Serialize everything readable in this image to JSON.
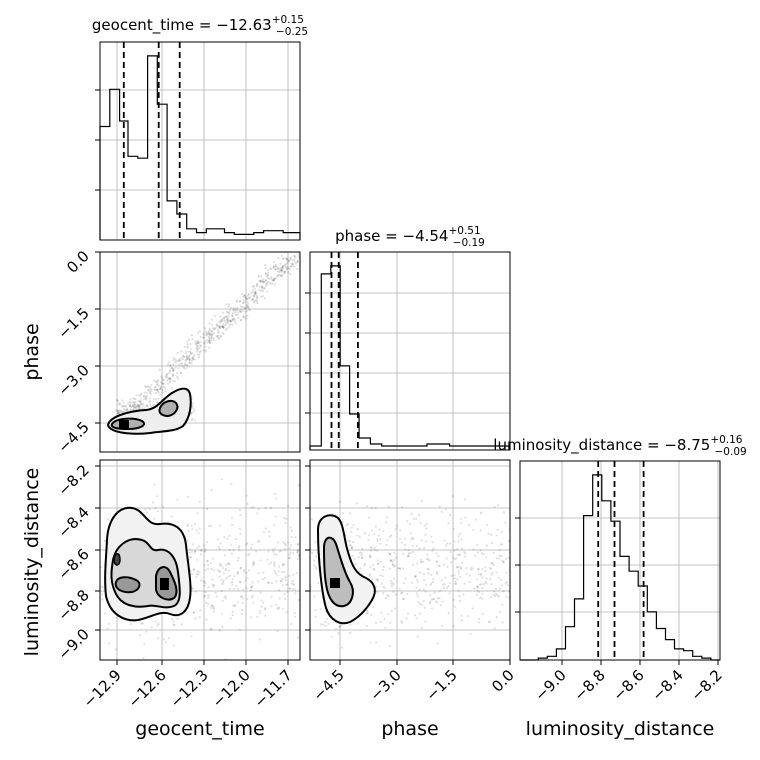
{
  "chart_data": {
    "type": "corner",
    "parameters": [
      "geocent_time",
      "phase",
      "luminosity_distance"
    ],
    "ranges": {
      "geocent_time": [
        -13.05,
        -11.62
      ],
      "phase": [
        -5.3,
        0.0
      ],
      "luminosity_distance": [
        -9.27,
        -8.17
      ]
    },
    "ticks": {
      "geocent_time": [
        -12.9,
        -12.6,
        -12.3,
        -12.0,
        -11.7
      ],
      "phase": [
        -4.5,
        -3.0,
        -1.5,
        0.0
      ],
      "luminosity_distance": [
        -9.0,
        -8.8,
        -8.6,
        -8.4,
        -8.2
      ]
    },
    "tick_labels": {
      "geocent_time": [
        "−12.9",
        "−12.6",
        "−12.3",
        "−12.0",
        "−11.7"
      ],
      "phase": [
        "−4.5",
        "−3.0",
        "−1.5",
        "0.0"
      ],
      "luminosity_distance": [
        "−9.0",
        "−8.8",
        "−8.6",
        "−8.4",
        "−8.2"
      ]
    },
    "titles": [
      {
        "param": "geocent_time",
        "prefix": "geocent_time = −12.63",
        "sup": "+0.15",
        "sub": "−0.25"
      },
      {
        "param": "phase",
        "prefix": "phase = −4.54",
        "sup": "+0.51",
        "sub": "−0.19"
      },
      {
        "param": "luminosity_distance",
        "prefix": "luminosity_distance = −8.75",
        "sup": "+0.16",
        "sub": "−0.09"
      }
    ],
    "marginals": {
      "geocent_time": {
        "edges": [
          -13.05,
          -12.98,
          -12.91,
          -12.85,
          -12.78,
          -12.71,
          -12.64,
          -12.57,
          -12.5,
          -12.43,
          -12.36,
          -12.29,
          -12.23,
          -12.16,
          -12.09,
          -12.02,
          -11.95,
          -11.88,
          -11.81,
          -11.74,
          -11.67,
          -11.62
        ],
        "counts": [
          0.61,
          0.81,
          0.64,
          0.45,
          0.44,
          0.99,
          0.73,
          0.21,
          0.14,
          0.06,
          0.04,
          0.06,
          0.06,
          0.04,
          0.03,
          0.03,
          0.04,
          0.05,
          0.05,
          0.04,
          0.04
        ],
        "quantiles": [
          -12.88,
          -12.63,
          -12.48
        ]
      },
      "phase": {
        "edges": [
          -5.3,
          -5.0,
          -4.75,
          -4.5,
          -4.25,
          -4.0,
          -3.7,
          -3.4,
          -3.1,
          -2.8,
          -2.5,
          -2.2,
          -1.9,
          -1.6,
          -1.3,
          -1.0,
          -0.7,
          -0.4,
          0.0
        ],
        "counts": [
          0.02,
          0.88,
          0.92,
          0.42,
          0.18,
          0.06,
          0.03,
          0.02,
          0.02,
          0.02,
          0.02,
          0.03,
          0.03,
          0.02,
          0.02,
          0.02,
          0.02,
          0.02
        ],
        "quantiles": [
          -4.73,
          -4.54,
          -4.03
        ]
      },
      "luminosity_distance": {
        "edges": [
          -9.27,
          -9.22,
          -9.17,
          -9.12,
          -9.07,
          -9.02,
          -8.97,
          -8.92,
          -8.87,
          -8.82,
          -8.77,
          -8.72,
          -8.67,
          -8.62,
          -8.57,
          -8.52,
          -8.47,
          -8.42,
          -8.37,
          -8.32,
          -8.27,
          -8.22,
          -8.17
        ],
        "counts": [
          0.0,
          0.0,
          0.01,
          0.02,
          0.06,
          0.18,
          0.33,
          0.78,
          1.0,
          0.86,
          0.75,
          0.56,
          0.48,
          0.4,
          0.26,
          0.17,
          0.11,
          0.06,
          0.05,
          0.02,
          0.01,
          0.0
        ],
        "quantiles": [
          -8.84,
          -8.75,
          -8.59
        ]
      }
    },
    "grid": true
  }
}
